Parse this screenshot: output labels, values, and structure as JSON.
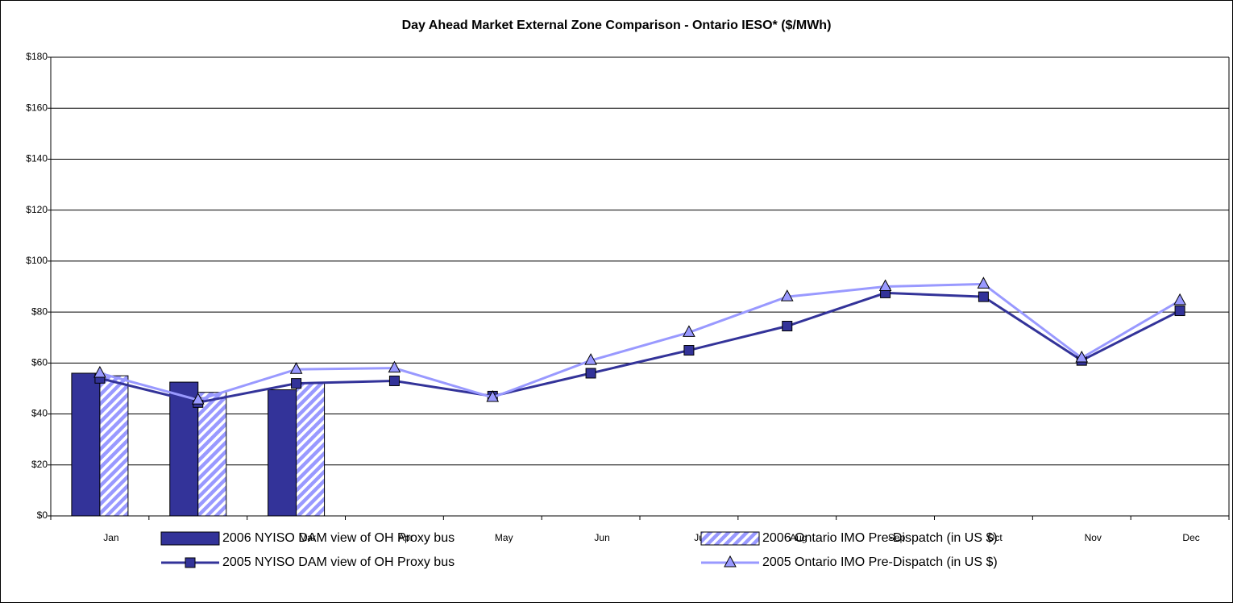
{
  "chart_data": {
    "type": "bar",
    "title": "Day Ahead Market External Zone Comparison - Ontario IESO* ($/MWh)",
    "categories": [
      "Jan",
      "Feb",
      "Mar",
      "Apr",
      "May",
      "Jun",
      "Jul",
      "Aug",
      "Sep",
      "Oct",
      "Nov",
      "Dec"
    ],
    "series": [
      {
        "name": "2006 NYISO DAM view of OH Proxy bus",
        "type": "bar",
        "color": "#333399",
        "values": [
          56,
          52.5,
          49.5,
          null,
          null,
          null,
          null,
          null,
          null,
          null,
          null,
          null
        ]
      },
      {
        "name": "2006 Ontario IMO Pre-Dispatch (in US $)",
        "type": "bar",
        "hatched": true,
        "color": "#9999ff",
        "values": [
          55,
          48.5,
          52,
          null,
          null,
          null,
          null,
          null,
          null,
          null,
          null,
          null
        ]
      },
      {
        "name": "2005 NYISO DAM view of OH Proxy bus",
        "type": "line",
        "marker": "square",
        "color": "#333399",
        "values": [
          54,
          44.5,
          52,
          53,
          47,
          56,
          65,
          74.5,
          87.5,
          86,
          61,
          80.5
        ]
      },
      {
        "name": "2005 Ontario IMO Pre-Dispatch (in US $)",
        "type": "line",
        "marker": "triangle",
        "color": "#9999ff",
        "values": [
          56,
          45.5,
          57.5,
          58,
          46.5,
          61,
          72,
          86,
          90,
          91,
          62,
          84.5
        ]
      }
    ],
    "ylim": [
      0,
      180
    ],
    "yticks": [
      {
        "value": 0,
        "label": "$0"
      },
      {
        "value": 20,
        "label": "$20"
      },
      {
        "value": 40,
        "label": "$40"
      },
      {
        "value": 60,
        "label": "$60"
      },
      {
        "value": 80,
        "label": "$80"
      },
      {
        "value": 100,
        "label": "$100"
      },
      {
        "value": 120,
        "label": "$120"
      },
      {
        "value": 140,
        "label": "$140"
      },
      {
        "value": 160,
        "label": "$160"
      },
      {
        "value": 180,
        "label": "$180"
      }
    ],
    "grid": true,
    "legend": "bottom"
  }
}
